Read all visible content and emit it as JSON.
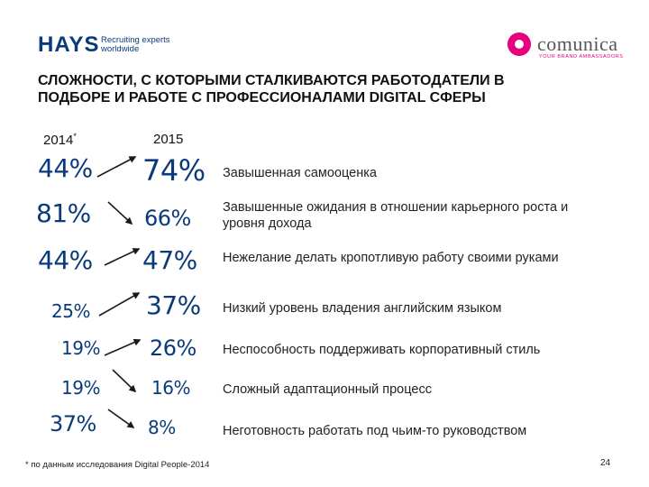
{
  "header": {
    "hays_brand": "HAYS",
    "hays_tagline_line1": "Recruiting experts",
    "hays_tagline_line2": "worldwide",
    "comunica_brand": "comunica",
    "comunica_tagline": "YOUR BRAND AMBASSADORS"
  },
  "title": {
    "line1": "СЛОЖНОСТИ, С КОТОРЫМИ СТАЛКИВАЮТСЯ РАБОТОДАТЕЛИ В",
    "line2": "ПОДБОРЕ И РАБОТЕ С ПРОФЕССИОНАЛАМИ DIGITAL СФЕРЫ"
  },
  "years": {
    "left": "2014",
    "left_mark": "*",
    "right": "2015"
  },
  "rows": [
    {
      "v2014": "44%",
      "v2015": "74%",
      "trend": "up",
      "text": "Завышенная самооценка"
    },
    {
      "v2014": "81%",
      "v2015": "66%",
      "trend": "down",
      "text": "Завышенные ожидания в отношении карьерного роста и уровня дохода"
    },
    {
      "v2014": "44%",
      "v2015": "47%",
      "trend": "up",
      "text": "Нежелание делать кропотливую работу своими руками"
    },
    {
      "v2014": "25%",
      "v2015": "37%",
      "trend": "up",
      "text": "Низкий уровень владения английским языком"
    },
    {
      "v2014": "19%",
      "v2015": "26%",
      "trend": "up",
      "text": "Неспособность поддерживать корпоративный стиль"
    },
    {
      "v2014": "19%",
      "v2015": "16%",
      "trend": "down",
      "text": "Сложный адаптационный процесс"
    },
    {
      "v2014": "37%",
      "v2015": "8%",
      "trend": "down",
      "text": "Неготовность работать под чьим-то руководством"
    }
  ],
  "footnote": "* по данным исследования Digital People-2014",
  "page_number": "24",
  "colors": {
    "accent": "#0a3a7a",
    "brand_pink": "#e6007e"
  }
}
